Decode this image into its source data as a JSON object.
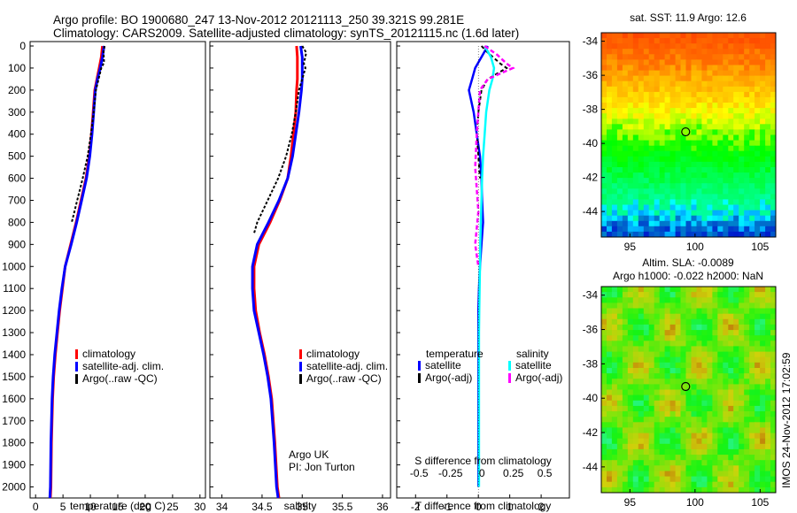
{
  "header": {
    "line1": "Argo profile: BO 1900680_247 13-Nov-2012 20121113_250 39.321S 99.281E",
    "line2": "Climatology: CARS2009. Satellite-adjusted climatology: synTS_20121115.nc (1.6d later)"
  },
  "credit": {
    "line1": "Argo UK",
    "line2": "PI: Jon Turton"
  },
  "watermark": "IMOS 24-Nov-2012 17:02:59",
  "colors": {
    "climatology": "#ff0000",
    "satellite": "#0000ff",
    "argo": "#000000",
    "sat_salinity": "#00ffff",
    "argo_salinity_adj": "#ff00ff"
  },
  "chart_data": [
    {
      "type": "line",
      "name": "temperature-profile",
      "xlabel": "temperature (deg C)",
      "xlim": [
        -1,
        31
      ],
      "xticks": [
        0,
        5,
        10,
        15,
        20,
        25,
        30
      ],
      "ylim": [
        2050,
        0
      ],
      "yticks": [
        0,
        100,
        200,
        300,
        400,
        500,
        600,
        700,
        800,
        900,
        1000,
        1100,
        1200,
        1300,
        1400,
        1500,
        1600,
        1700,
        1800,
        1900,
        2000
      ],
      "legend": [
        "climatology",
        "satellite-adj. clim.",
        "Argo(..raw -QC)"
      ],
      "series": [
        {
          "name": "climatology",
          "x": [
            12.2,
            12.0,
            11.6,
            11.2,
            10.8,
            10.5,
            10.2,
            9.8,
            9.2,
            8.3,
            7.4,
            6.4,
            5.4,
            4.9,
            4.4,
            4.0,
            3.6,
            3.3,
            3.1,
            2.9,
            2.8,
            2.7
          ],
          "y": [
            0,
            50,
            100,
            150,
            200,
            300,
            400,
            500,
            600,
            700,
            800,
            900,
            1000,
            1100,
            1200,
            1300,
            1400,
            1500,
            1600,
            1800,
            2000,
            2050
          ]
        },
        {
          "name": "satellite-adj. clim.",
          "x": [
            12.5,
            12.2,
            11.8,
            11.3,
            10.9,
            10.6,
            10.3,
            9.9,
            9.3,
            8.4,
            7.5,
            6.5,
            5.4,
            4.8,
            4.3,
            3.9,
            3.5,
            3.2,
            3.0,
            2.8,
            2.7,
            2.6
          ],
          "y": [
            0,
            50,
            100,
            150,
            200,
            300,
            400,
            500,
            600,
            700,
            800,
            900,
            1000,
            1100,
            1200,
            1300,
            1400,
            1500,
            1600,
            1800,
            2000,
            2050
          ]
        },
        {
          "name": "Argo(..raw -QC)",
          "x": [
            12.6,
            12.4,
            12.5,
            12.0,
            11.5,
            11.0,
            10.6,
            10.1,
            9.5,
            8.6,
            7.6,
            6.6
          ],
          "y": [
            0,
            25,
            75,
            100,
            150,
            200,
            300,
            400,
            500,
            600,
            700,
            800
          ]
        }
      ]
    },
    {
      "type": "line",
      "name": "salinity-profile",
      "xlabel": "salinity",
      "xticks": [
        34,
        34.5,
        35,
        35.5,
        36
      ],
      "xlim": [
        33.85,
        36.1
      ],
      "ylim": [
        2050,
        0
      ],
      "legend": [
        "climatology",
        "satellite-adj. clim.",
        "Argo(..raw -QC)"
      ],
      "series": [
        {
          "name": "climatology",
          "x": [
            34.93,
            34.94,
            34.94,
            34.94,
            34.93,
            34.92,
            34.89,
            34.86,
            34.82,
            34.72,
            34.6,
            34.46,
            34.4,
            34.4,
            34.42,
            34.47,
            34.53,
            34.58,
            34.62,
            34.66,
            34.69,
            34.71
          ],
          "y": [
            0,
            50,
            100,
            150,
            200,
            300,
            400,
            500,
            600,
            700,
            800,
            900,
            1000,
            1100,
            1200,
            1300,
            1400,
            1500,
            1600,
            1800,
            2000,
            2050
          ]
        },
        {
          "name": "satellite-adj. clim.",
          "x": [
            34.98,
            35.0,
            35.0,
            35.0,
            34.99,
            34.96,
            34.92,
            34.88,
            34.82,
            34.71,
            34.58,
            34.44,
            34.38,
            34.38,
            34.4,
            34.46,
            34.52,
            34.57,
            34.61,
            34.65,
            34.68,
            34.7
          ],
          "y": [
            0,
            50,
            100,
            150,
            200,
            300,
            400,
            500,
            600,
            700,
            800,
            900,
            1000,
            1100,
            1200,
            1300,
            1400,
            1500,
            1600,
            1800,
            2000,
            2050
          ]
        },
        {
          "name": "Argo(..raw -QC)",
          "x": [
            35.0,
            35.05,
            35.02,
            35.04,
            35.0,
            34.96,
            34.92,
            34.87,
            34.8,
            34.7,
            34.57,
            34.44,
            34.4
          ],
          "y": [
            0,
            30,
            80,
            100,
            150,
            200,
            300,
            400,
            500,
            600,
            700,
            800,
            850
          ]
        }
      ]
    },
    {
      "type": "line",
      "name": "difference-profile",
      "xlabel": "T difference from climatology",
      "xlabel_top": "S difference from climatology",
      "xticks": [
        -2,
        -1,
        0,
        1,
        2
      ],
      "xticks_top": [
        "-0.5",
        "-0.25",
        "0",
        "0.25",
        "0.5"
      ],
      "xlim": [
        -2.6,
        2.9
      ],
      "ylim": [
        2050,
        0
      ],
      "legend_title_temperature": "temperature",
      "legend_title_salinity": "salinity",
      "legend": [
        "satellite",
        "Argo(-adj)",
        "satellite",
        "Argo(-adj)"
      ],
      "series": [
        {
          "name": "temperature satellite",
          "x": [
            0.3,
            0.1,
            -0.1,
            -0.2,
            -0.3,
            -0.15,
            -0.05,
            0.05,
            0.1,
            0.12,
            0.15,
            0.1,
            0.05,
            0.02,
            0,
            0,
            0,
            0,
            0,
            0,
            0
          ],
          "y": [
            0,
            50,
            100,
            150,
            200,
            300,
            400,
            500,
            600,
            700,
            800,
            900,
            1000,
            1100,
            1200,
            1300,
            1400,
            1500,
            1600,
            1800,
            2000
          ]
        },
        {
          "name": "temperature Argo(-adj)",
          "x": [
            0.1,
            0.3,
            0.7,
            0.9,
            0.3,
            0.1,
            0.0,
            -0.05,
            0.0,
            0.05
          ],
          "y": [
            0,
            30,
            80,
            100,
            150,
            200,
            300,
            400,
            500,
            600
          ]
        },
        {
          "name": "salinity satellite",
          "x": [
            0.2,
            0.4,
            0.5,
            0.45,
            0.35,
            0.25,
            0.2,
            0.15,
            0.12,
            0.1,
            0.08,
            0.06,
            0.05,
            0.04,
            0.03,
            0.02,
            0.02,
            0.02,
            0.02,
            0.02,
            0.02
          ],
          "y": [
            0,
            50,
            100,
            150,
            200,
            300,
            400,
            500,
            600,
            700,
            800,
            900,
            1000,
            1100,
            1200,
            1300,
            1400,
            1500,
            1600,
            1800,
            2000
          ]
        },
        {
          "name": "salinity Argo(-adj)",
          "x": [
            0.2,
            0.6,
            0.9,
            1.1,
            0.3,
            0.05,
            0.0,
            -0.05,
            -0.1,
            -0.05,
            0.0,
            -0.1,
            0.0
          ],
          "y": [
            0,
            40,
            80,
            100,
            150,
            200,
            300,
            400,
            550,
            650,
            750,
            900,
            1000
          ]
        }
      ]
    },
    {
      "type": "heatmap",
      "name": "sst-map",
      "title": "sat. SST: 11.9 Argo: 12.6",
      "xticks": [
        95,
        100,
        105
      ],
      "yticks": [
        -34,
        -36,
        -38,
        -40,
        -42,
        -44
      ],
      "xlim": [
        92.8,
        106.2
      ],
      "ylim": [
        -45.5,
        -33.5
      ],
      "marker": {
        "lon": 99.281,
        "lat": -39.321
      }
    },
    {
      "type": "heatmap",
      "name": "sla-map",
      "title": "Altim. SLA: -0.0089",
      "subtitle": "Argo h1000: -0.022 h2000: NaN",
      "xticks": [
        95,
        100,
        105
      ],
      "yticks": [
        -34,
        -36,
        -38,
        -40,
        -42,
        -44
      ],
      "xlim": [
        92.8,
        106.2
      ],
      "ylim": [
        -45.5,
        -33.5
      ],
      "marker": {
        "lon": 99.281,
        "lat": -39.321
      }
    }
  ]
}
